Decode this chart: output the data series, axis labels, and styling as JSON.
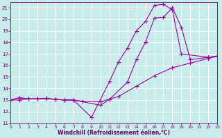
{
  "xlabel": "Windchill (Refroidissement éolien,°C)",
  "background_color": "#c8ecec",
  "grid_color": "#b0d8d8",
  "line_color": "#990099",
  "xlim": [
    0,
    23
  ],
  "ylim": [
    11,
    21.5
  ],
  "yticks": [
    11,
    12,
    13,
    14,
    15,
    16,
    17,
    18,
    19,
    20,
    21
  ],
  "xticks": [
    0,
    1,
    2,
    3,
    4,
    5,
    6,
    7,
    8,
    9,
    10,
    11,
    12,
    13,
    14,
    15,
    16,
    17,
    18,
    19,
    20,
    21,
    22,
    23
  ],
  "line1_x": [
    0,
    1,
    2,
    3,
    4,
    5,
    6,
    7,
    10,
    11,
    13,
    14,
    15,
    16,
    17,
    18,
    19,
    20,
    22,
    23
  ],
  "line1_y": [
    13.0,
    13.2,
    13.1,
    13.1,
    13.15,
    13.05,
    13.0,
    13.0,
    12.55,
    13.05,
    14.55,
    16.5,
    18.0,
    20.1,
    20.15,
    21.0,
    19.3,
    16.5,
    16.7,
    16.8
  ],
  "line2_x": [
    0,
    1,
    2,
    3,
    4,
    5,
    6,
    7,
    9,
    11,
    12,
    13,
    14,
    15,
    16,
    17,
    18,
    19,
    22,
    23
  ],
  "line2_y": [
    13.0,
    13.2,
    13.1,
    13.1,
    13.15,
    13.05,
    13.0,
    13.0,
    11.5,
    14.6,
    16.3,
    17.5,
    19.0,
    19.8,
    21.2,
    21.3,
    20.8,
    17.0,
    16.7,
    16.8
  ],
  "line3_x": [
    0,
    1,
    2,
    3,
    4,
    5,
    6,
    7,
    8,
    10,
    12,
    14,
    16,
    18,
    20,
    22,
    23
  ],
  "line3_y": [
    13.0,
    13.0,
    13.1,
    13.1,
    13.1,
    13.05,
    13.0,
    13.0,
    12.9,
    12.85,
    13.3,
    14.2,
    15.1,
    15.8,
    16.2,
    16.6,
    16.8
  ]
}
